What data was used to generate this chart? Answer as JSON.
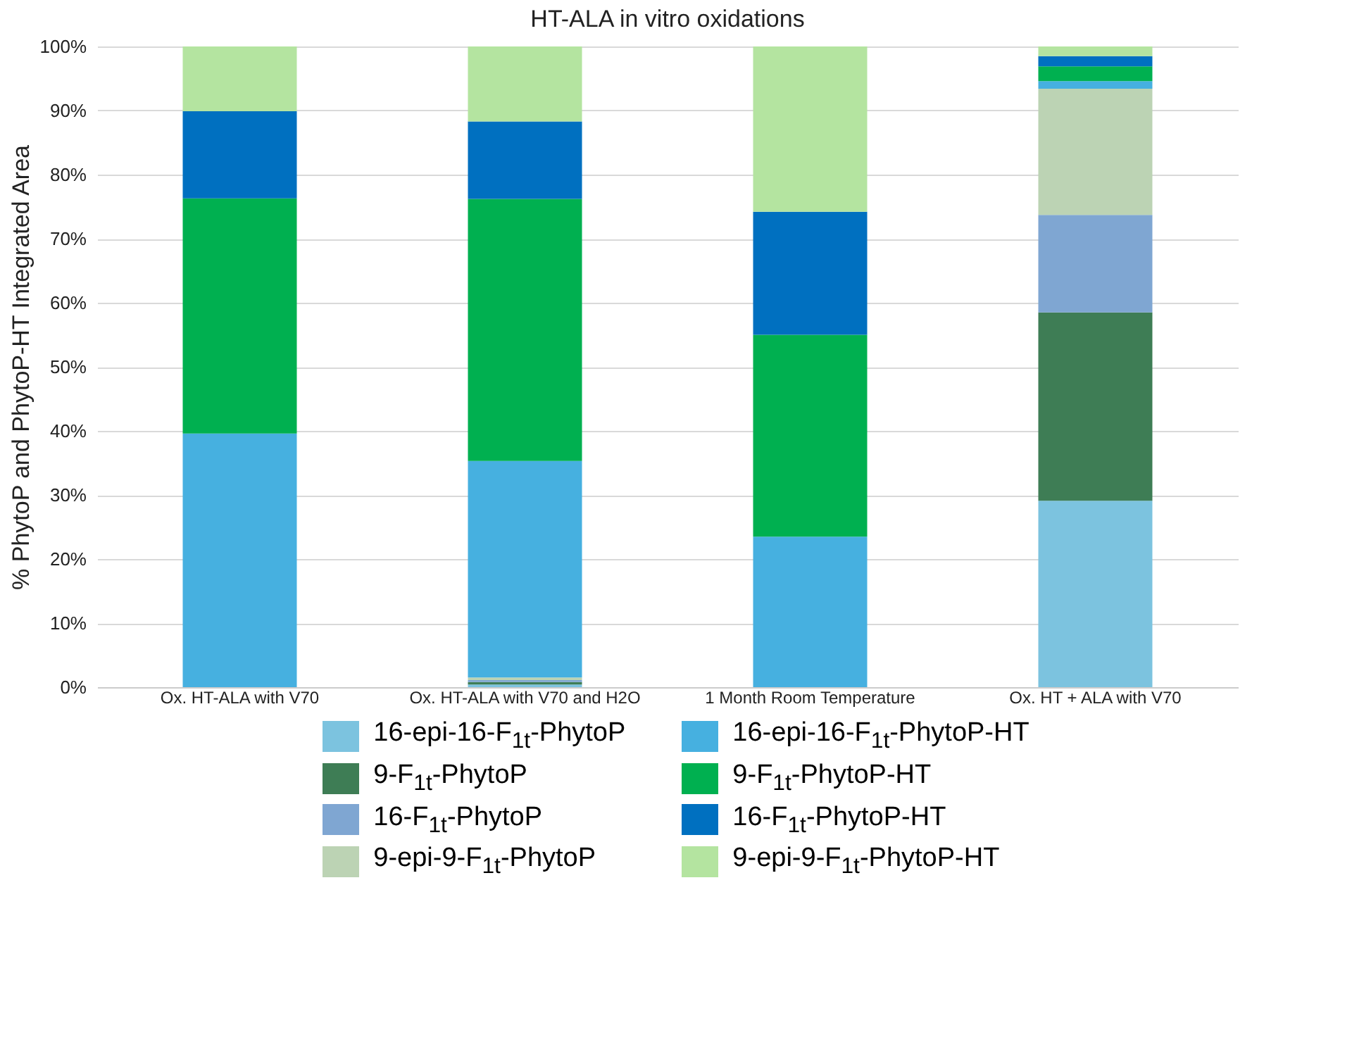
{
  "chart_data": {
    "type": "bar",
    "stacked": true,
    "title": "HT-ALA in vitro oxidations",
    "ylabel": "% PhytoP and PhytoP-HT Integrated Area",
    "categories": [
      "Ox. HT-ALA with V70",
      "Ox. HT-ALA with V70 and H2O",
      "1 Month Room Temperature",
      "Ox. HT + ALA with V70"
    ],
    "ylim": [
      0,
      100
    ],
    "yticks": [
      {
        "value": 0,
        "label": "0%"
      },
      {
        "value": 10,
        "label": "10%"
      },
      {
        "value": 20,
        "label": "20%"
      },
      {
        "value": 30,
        "label": "30%"
      },
      {
        "value": 40,
        "label": "40%"
      },
      {
        "value": 50,
        "label": "50%"
      },
      {
        "value": 60,
        "label": "60%"
      },
      {
        "value": 70,
        "label": "70%"
      },
      {
        "value": 80,
        "label": "80%"
      },
      {
        "value": 90,
        "label": "90%"
      },
      {
        "value": 100,
        "label": "100%"
      }
    ],
    "grid": "y",
    "legend": "bottom",
    "series": [
      {
        "name": "16-epi-16-F$_{1t}$-PhytoP",
        "color": "#7cc3df",
        "values": [
          null,
          0.4,
          null,
          29.1
        ]
      },
      {
        "name": "9-F$_{1t}$-PhytoP",
        "color": "#3e7d55",
        "values": [
          null,
          0.4,
          null,
          29.4
        ]
      },
      {
        "name": "16-F$_{1t}$-PhytoP",
        "color": "#7fa6d2",
        "values": [
          null,
          0.3,
          null,
          15.2
        ]
      },
      {
        "name": "9-epi-9-F$_{1t}$-PhytoP",
        "color": "#bcd3b4",
        "values": [
          null,
          0.4,
          null,
          19.7
        ]
      },
      {
        "name": "16-epi-16-F$_{1t}$-PhytoP-HT",
        "color": "#46b0e0",
        "values": [
          39.6,
          33.8,
          23.5,
          1.2
        ]
      },
      {
        "name": "9-F$_{1t}$-PhytoP-HT",
        "color": "#00b050",
        "values": [
          36.7,
          40.9,
          31.5,
          2.3
        ]
      },
      {
        "name": "16-F$_{1t}$-PhytoP-HT",
        "color": "#0070c0",
        "values": [
          13.6,
          12.1,
          19.2,
          1.6
        ]
      },
      {
        "name": "9-epi-9-F$_{1t}$-PhytoP-HT",
        "color": "#b4e4a0",
        "values": [
          10.1,
          11.7,
          25.8,
          1.5
        ]
      }
    ]
  }
}
